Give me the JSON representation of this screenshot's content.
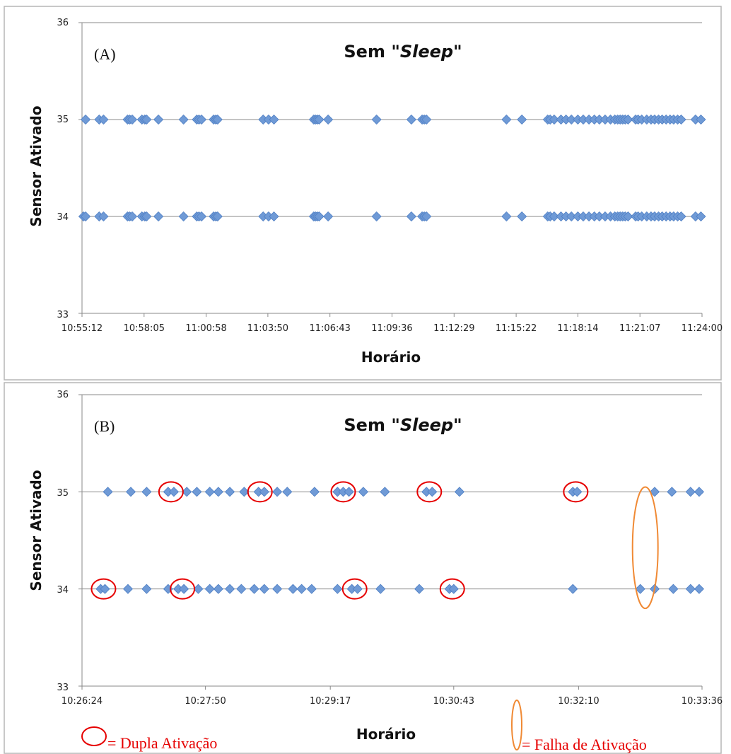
{
  "chart_data": [
    {
      "type": "scatter",
      "panel_label": "(A)",
      "title_prefix": "Sem \"",
      "title_emph": "Sleep",
      "title_suffix": "\"",
      "xlabel": "Horário",
      "ylabel": "Sensor Ativado",
      "ylim": [
        33,
        36
      ],
      "yticks": [
        "33",
        "34",
        "35",
        "36"
      ],
      "xlim": [
        "10:55:12",
        "11:24:00"
      ],
      "xticks": [
        "10:55:12",
        "10:58:05",
        "11:00:58",
        "11:03:50",
        "11:06:43",
        "11:09:36",
        "11:12:29",
        "11:15:22",
        "11:18:14",
        "11:21:07",
        "11:24:00"
      ],
      "grid": "horizontal",
      "marker_color": "#6f9ad6",
      "series": [
        {
          "y": 35,
          "x": [
            "10:55:22",
            "10:56:00",
            "10:56:12",
            "10:57:19",
            "10:57:25",
            "10:57:32",
            "10:57:59",
            "10:58:07",
            "10:58:12",
            "10:58:45",
            "10:59:55",
            "11:00:32",
            "11:00:38",
            "11:00:45",
            "11:01:19",
            "11:01:25",
            "11:01:30",
            "11:03:37",
            "11:03:52",
            "11:04:07",
            "11:05:58",
            "11:06:03",
            "11:06:08",
            "11:06:13",
            "11:06:38",
            "11:08:53",
            "11:10:30",
            "11:11:00",
            "11:11:06",
            "11:11:12",
            "11:14:55",
            "11:15:38",
            "11:16:50",
            "11:16:57",
            "11:17:08",
            "11:17:27",
            "11:17:41",
            "11:17:56",
            "11:18:14",
            "11:18:29",
            "11:18:45",
            "11:19:00",
            "11:19:14",
            "11:19:30",
            "11:19:45",
            "11:19:57",
            "11:20:05",
            "11:20:12",
            "11:20:19",
            "11:20:26",
            "11:20:34",
            "11:20:55",
            "11:21:02",
            "11:21:12",
            "11:21:26",
            "11:21:38",
            "11:21:48",
            "11:21:59",
            "11:22:09",
            "11:22:20",
            "11:22:31",
            "11:22:41",
            "11:22:52",
            "11:23:02",
            "11:23:42",
            "11:23:57"
          ]
        },
        {
          "y": 34,
          "x": [
            "10:55:16",
            "10:55:22",
            "10:56:00",
            "10:56:12",
            "10:57:19",
            "10:57:25",
            "10:57:32",
            "10:57:59",
            "10:58:07",
            "10:58:12",
            "10:58:45",
            "10:59:55",
            "11:00:32",
            "11:00:38",
            "11:00:45",
            "11:01:19",
            "11:01:25",
            "11:01:30",
            "11:03:37",
            "11:03:52",
            "11:04:07",
            "11:05:58",
            "11:06:03",
            "11:06:08",
            "11:06:13",
            "11:06:38",
            "11:08:53",
            "11:10:30",
            "11:11:00",
            "11:11:06",
            "11:11:12",
            "11:14:55",
            "11:15:38",
            "11:16:50",
            "11:16:57",
            "11:17:08",
            "11:17:27",
            "11:17:41",
            "11:17:56",
            "11:18:14",
            "11:18:29",
            "11:18:45",
            "11:19:00",
            "11:19:14",
            "11:19:30",
            "11:19:45",
            "11:19:57",
            "11:20:05",
            "11:20:12",
            "11:20:19",
            "11:20:26",
            "11:20:34",
            "11:20:55",
            "11:21:02",
            "11:21:12",
            "11:21:26",
            "11:21:38",
            "11:21:48",
            "11:21:59",
            "11:22:09",
            "11:22:20",
            "11:22:31",
            "11:22:41",
            "11:22:52",
            "11:23:02",
            "11:23:42",
            "11:23:57"
          ]
        }
      ]
    },
    {
      "type": "scatter",
      "panel_label": "(B)",
      "title_prefix": "Sem \"",
      "title_emph": "Sleep",
      "title_suffix": "\"",
      "xlabel": "Horário",
      "ylabel": "Sensor Ativado",
      "ylim": [
        33,
        36
      ],
      "yticks": [
        "33",
        "34",
        "35",
        "36"
      ],
      "xlim": [
        "10:26:24",
        "10:33:36"
      ],
      "xticks": [
        "10:26:24",
        "10:27:50",
        "10:29:17",
        "10:30:43",
        "10:32:10",
        "10:33:36"
      ],
      "grid": "horizontal",
      "marker_color": "#6f9ad6",
      "series": [
        {
          "y": 35,
          "x": [
            "10:26:42",
            "10:26:58",
            "10:27:09",
            "10:27:24",
            "10:27:28",
            "10:27:37",
            "10:27:44",
            "10:27:53",
            "10:27:59",
            "10:28:07",
            "10:28:17",
            "10:28:27",
            "10:28:31",
            "10:28:40",
            "10:28:47",
            "10:29:06",
            "10:29:22",
            "10:29:26",
            "10:29:30",
            "10:29:40",
            "10:29:55",
            "10:30:24",
            "10:30:28",
            "10:30:47",
            "10:32:06",
            "10:32:09",
            "10:33:03",
            "10:33:15",
            "10:33:28",
            "10:33:34"
          ]
        },
        {
          "y": 34,
          "x": [
            "10:26:37",
            "10:26:40",
            "10:26:56",
            "10:27:09",
            "10:27:24",
            "10:27:31",
            "10:27:35",
            "10:27:45",
            "10:27:53",
            "10:27:59",
            "10:28:07",
            "10:28:15",
            "10:28:24",
            "10:28:31",
            "10:28:40",
            "10:28:51",
            "10:28:57",
            "10:29:04",
            "10:29:22",
            "10:29:32",
            "10:29:36",
            "10:29:52",
            "10:30:19",
            "10:30:40",
            "10:30:43",
            "10:32:06",
            "10:32:53",
            "10:33:03",
            "10:33:16",
            "10:33:28",
            "10:33:34"
          ]
        }
      ],
      "dupla_ativacao": [
        {
          "x": "10:26:39",
          "y": 34
        },
        {
          "x": "10:27:26",
          "y": 35
        },
        {
          "x": "10:27:34",
          "y": 34
        },
        {
          "x": "10:28:28",
          "y": 35
        },
        {
          "x": "10:29:26",
          "y": 35
        },
        {
          "x": "10:29:34",
          "y": 34
        },
        {
          "x": "10:30:26",
          "y": 35
        },
        {
          "x": "10:30:42",
          "y": 34
        },
        {
          "x": "10:32:08",
          "y": 35
        }
      ],
      "falha_ativacao": [
        {
          "x": "10:32:53",
          "y_min": 33.8,
          "y_max": 35.05
        }
      ],
      "legend": [
        {
          "symbol": "circle",
          "color": "#e60000",
          "label": "= Dupla Ativação"
        },
        {
          "symbol": "ellipse",
          "color": "#f08a35",
          "label": "= Falha de Ativação"
        }
      ]
    }
  ]
}
